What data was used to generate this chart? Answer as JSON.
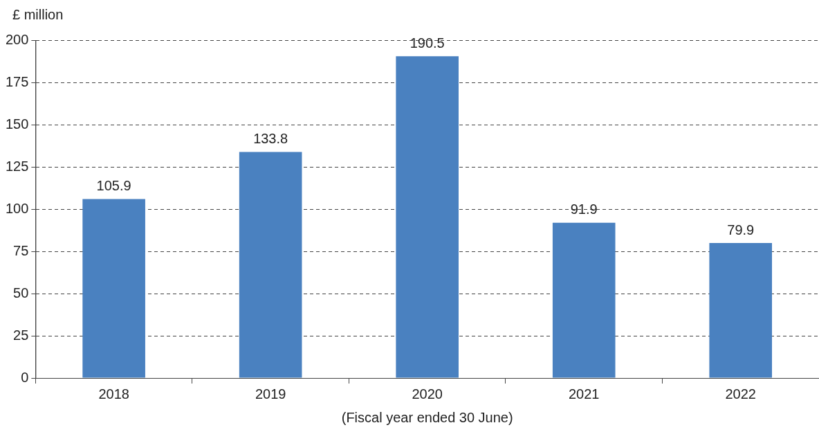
{
  "chart_data": {
    "type": "bar",
    "ylabel": "£ million",
    "xlabel": "(Fiscal year ended 30 June)",
    "categories": [
      "2018",
      "2019",
      "2020",
      "2021",
      "2022"
    ],
    "values": [
      105.9,
      133.8,
      190.5,
      91.9,
      79.9
    ],
    "color": "#4a81c0",
    "ylim": [
      0,
      200
    ],
    "yticks": [
      0,
      25,
      50,
      75,
      100,
      125,
      150,
      175,
      200
    ],
    "grid": "y",
    "data_labels": true,
    "legend": false
  }
}
